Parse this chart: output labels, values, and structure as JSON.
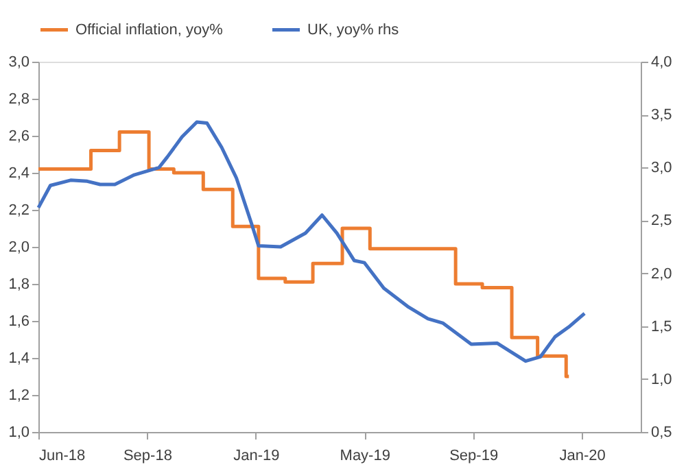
{
  "chart_data": {
    "type": "line",
    "legend": "top",
    "grid": false,
    "xlim": [
      "2018-06-01",
      "2020-03-16"
    ],
    "xticks": [
      {
        "value": "2018-06-01",
        "label": "Jun-18"
      },
      {
        "value": "2018-09-27",
        "label": "Sep-18"
      },
      {
        "value": "2019-01-23",
        "label": "Jan-19"
      },
      {
        "value": "2019-05-21",
        "label": "May-19"
      },
      {
        "value": "2019-09-16",
        "label": "Sep-19"
      },
      {
        "value": "2020-01-12",
        "label": "Jan-20"
      }
    ],
    "ylim": [
      1.0,
      3.0
    ],
    "yticks": [
      {
        "value": 1.0,
        "label": "1,0"
      },
      {
        "value": 1.2,
        "label": "1,2"
      },
      {
        "value": 1.4,
        "label": "1,4"
      },
      {
        "value": 1.6,
        "label": "1,6"
      },
      {
        "value": 1.8,
        "label": "1,8"
      },
      {
        "value": 2.0,
        "label": "2,0"
      },
      {
        "value": 2.2,
        "label": "2,2"
      },
      {
        "value": 2.4,
        "label": "2,4"
      },
      {
        "value": 2.6,
        "label": "2,6"
      },
      {
        "value": 2.8,
        "label": "2,8"
      },
      {
        "value": 3.0,
        "label": "3,0"
      }
    ],
    "y2lim": [
      0.5,
      4.0
    ],
    "y2ticks": [
      {
        "value": 0.5,
        "label": "0,5"
      },
      {
        "value": 1.0,
        "label": "1,0"
      },
      {
        "value": 1.5,
        "label": "1,5"
      },
      {
        "value": 2.0,
        "label": "2,0"
      },
      {
        "value": 2.5,
        "label": "2,5"
      },
      {
        "value": 3.0,
        "label": "3,0"
      },
      {
        "value": 3.5,
        "label": "3,5"
      },
      {
        "value": 4.0,
        "label": "4,0"
      }
    ],
    "series": [
      {
        "name": "Official inflation, yoy%",
        "type": "step",
        "color": "#ed7d31",
        "x": [
          "2018-06-01",
          "2018-07-28",
          "2018-08-28",
          "2018-09-29",
          "2018-10-26",
          "2018-11-27",
          "2018-12-29",
          "2019-01-26",
          "2019-02-24",
          "2019-03-26",
          "2019-04-27",
          "2019-05-27",
          "2019-08-28",
          "2019-09-26",
          "2019-10-28",
          "2019-11-25",
          "2019-12-26",
          "2019-12-29"
        ],
        "values": [
          2.42,
          2.52,
          2.62,
          2.42,
          2.4,
          2.31,
          2.11,
          1.83,
          1.81,
          1.91,
          2.1,
          1.99,
          1.8,
          1.78,
          1.51,
          1.41,
          1.3,
          1.3
        ]
      },
      {
        "name": "UK, yoy% rhs",
        "type": "line",
        "axis": "y2",
        "color": "#4472c4",
        "x": [
          "2018-06-01",
          "2018-06-14",
          "2018-07-06",
          "2018-07-24",
          "2018-08-07",
          "2018-08-23",
          "2018-09-13",
          "2018-10-10",
          "2018-10-19",
          "2018-11-04",
          "2018-11-20",
          "2018-12-01",
          "2018-12-17",
          "2019-01-02",
          "2019-01-18",
          "2019-01-26",
          "2019-02-19",
          "2019-03-18",
          "2019-04-05",
          "2019-04-21",
          "2019-05-10",
          "2019-05-21",
          "2019-06-11",
          "2019-07-08",
          "2019-07-29",
          "2019-08-14",
          "2019-09-14",
          "2019-10-12",
          "2019-11-12",
          "2019-11-28",
          "2019-12-14",
          "2019-12-30",
          "2020-01-15"
        ],
        "values": [
          2.62,
          2.83,
          2.88,
          2.87,
          2.84,
          2.84,
          2.93,
          3.0,
          3.1,
          3.29,
          3.43,
          3.42,
          3.19,
          2.9,
          2.48,
          2.26,
          2.25,
          2.38,
          2.55,
          2.38,
          2.12,
          2.1,
          1.86,
          1.68,
          1.57,
          1.53,
          1.33,
          1.34,
          1.17,
          1.21,
          1.4,
          1.5,
          1.62
        ]
      }
    ]
  }
}
